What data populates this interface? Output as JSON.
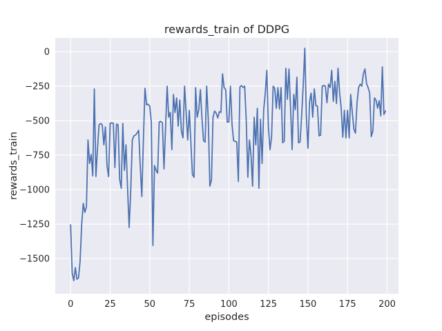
{
  "chart_data": {
    "type": "line",
    "title": "rewards_train of DDPG",
    "xlabel": "episodes",
    "ylabel": "rewards_train",
    "x_ticks": [
      0,
      25,
      50,
      75,
      100,
      125,
      150,
      175,
      200
    ],
    "y_ticks": [
      0,
      -250,
      -500,
      -750,
      -1000,
      -1250,
      -1500
    ],
    "xlim": [
      -9.7,
      207.2
    ],
    "ylim": [
      -1755,
      100
    ],
    "grid": true,
    "legend_position": "none",
    "style": {
      "line_color": "#4c72b0",
      "axes_background": "#eaeaf2",
      "grid_color": "#ffffff",
      "figure_background": "#ffffff",
      "text_color": "#262626"
    },
    "series": [
      {
        "name": "rewards_train",
        "x_start": 0,
        "x_step": 1,
        "values": [
          -1255,
          -1605,
          -1660,
          -1565,
          -1650,
          -1640,
          -1520,
          -1255,
          -1100,
          -1165,
          -1125,
          -640,
          -810,
          -745,
          -900,
          -270,
          -905,
          -700,
          -530,
          -520,
          -530,
          -675,
          -545,
          -825,
          -905,
          -520,
          -515,
          -520,
          -840,
          -525,
          -530,
          -925,
          -990,
          -520,
          -860,
          -675,
          -990,
          -1275,
          -1005,
          -640,
          -610,
          -605,
          -590,
          -570,
          -825,
          -1050,
          -640,
          -265,
          -385,
          -380,
          -395,
          -510,
          -1405,
          -825,
          -860,
          -880,
          -510,
          -505,
          -515,
          -850,
          -555,
          -250,
          -475,
          -440,
          -710,
          -310,
          -440,
          -335,
          -540,
          -350,
          -575,
          -625,
          -250,
          -440,
          -640,
          -425,
          -660,
          -890,
          -910,
          -260,
          -475,
          -420,
          -275,
          -480,
          -645,
          -655,
          -250,
          -490,
          -975,
          -930,
          -475,
          -430,
          -445,
          -480,
          -435,
          -440,
          -160,
          -260,
          -275,
          -510,
          -510,
          -250,
          -525,
          -645,
          -650,
          -655,
          -940,
          -255,
          -245,
          -260,
          -250,
          -500,
          -910,
          -640,
          -750,
          -975,
          -475,
          -675,
          -410,
          -990,
          -490,
          -810,
          -425,
          -300,
          -135,
          -550,
          -710,
          -620,
          -250,
          -265,
          -410,
          -260,
          -415,
          -260,
          -660,
          -650,
          -120,
          -345,
          -125,
          -410,
          -710,
          -310,
          -420,
          -185,
          -660,
          -655,
          -465,
          -240,
          25,
          -475,
          -700,
          -360,
          -300,
          -475,
          -270,
          -390,
          -395,
          -610,
          -605,
          -250,
          -245,
          -250,
          -370,
          -235,
          -260,
          -135,
          -360,
          -215,
          -375,
          -120,
          -300,
          -410,
          -620,
          -425,
          -625,
          -425,
          -625,
          -310,
          -440,
          -560,
          -590,
          -370,
          -260,
          -235,
          -250,
          -160,
          -125,
          -230,
          -260,
          -300,
          -615,
          -575,
          -335,
          -350,
          -410,
          -355,
          -465,
          -110,
          -455,
          -430
        ]
      }
    ]
  }
}
